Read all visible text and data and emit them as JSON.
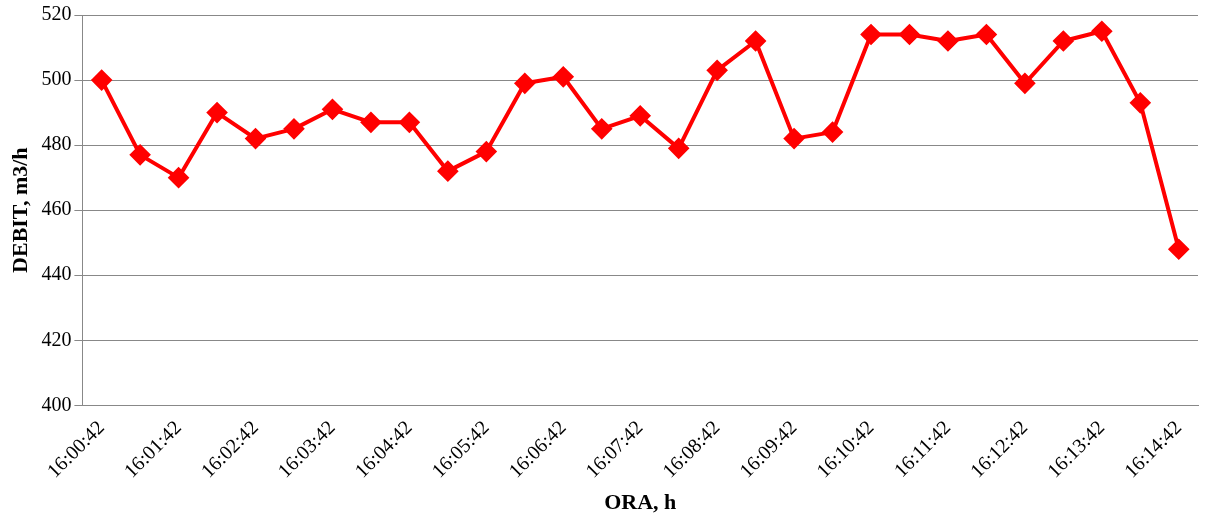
{
  "chart_data": {
    "type": "line",
    "xlabel": "ORA, h",
    "ylabel": "DEBIT, m3/h",
    "categories": [
      "16:00:42",
      null,
      "16:01:42",
      null,
      "16:02:42",
      null,
      "16:03:42",
      null,
      "16:04:42",
      null,
      "16:05:42",
      null,
      "16:06:42",
      null,
      "16:07:42",
      null,
      "16:08:42",
      null,
      "16:09:42",
      null,
      "16:10:42",
      null,
      "16:11:42",
      null,
      "16:12:42",
      null,
      "16:13:42",
      null,
      "16:14:42"
    ],
    "series": [
      {
        "color": "#ff0000",
        "values": [
          500,
          477,
          470,
          490,
          482,
          485,
          491,
          487,
          487,
          472,
          478,
          499,
          501,
          485,
          489,
          479,
          503,
          512,
          482,
          484,
          514,
          514,
          512,
          514,
          499,
          512,
          515,
          493,
          448
        ]
      }
    ],
    "ylim": [
      400,
      520
    ],
    "yticks": [
      400,
      420,
      440,
      460,
      480,
      500,
      520
    ],
    "grid": "y",
    "legend": false,
    "marker": "diamond",
    "line_style": "solid"
  }
}
